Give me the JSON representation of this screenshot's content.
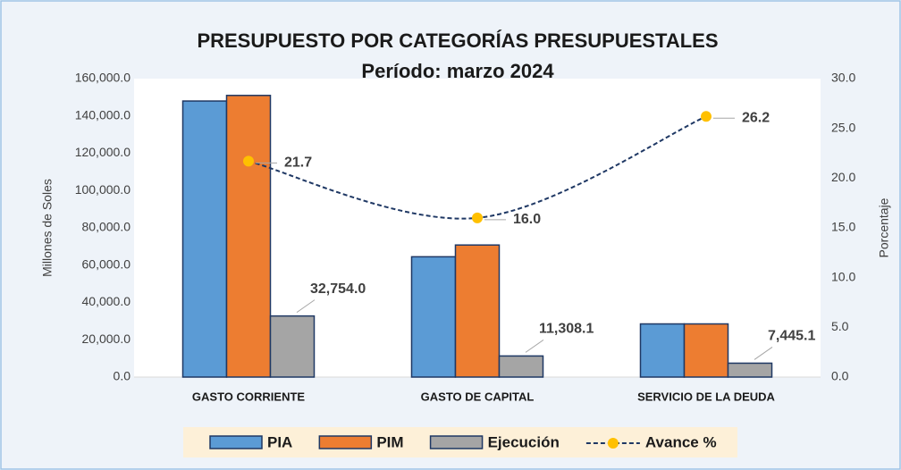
{
  "chart_data": {
    "type": "bar",
    "title": "PRESUPUESTO  POR CATEGORÍAS PRESUPUESTALES",
    "subtitle": "Período: marzo 2024",
    "y_label": "Millones de Soles",
    "y2_label": "Porcentaje",
    "categories": [
      "GASTO CORRIENTE",
      "GASTO DE CAPITAL",
      "SERVICIO DE LA DEUDA"
    ],
    "series": [
      {
        "name": "PIA",
        "type": "bar",
        "color": "#5b9bd5",
        "values": [
          148000,
          64500,
          28500
        ]
      },
      {
        "name": "PIM",
        "type": "bar",
        "color": "#ed7d31",
        "values": [
          151000,
          70800,
          28500
        ]
      },
      {
        "name": "Ejecución",
        "type": "bar",
        "color": "#a5a5a5",
        "values": [
          32754.0,
          11308.1,
          7445.1
        ],
        "value_labels": [
          "32,754.0",
          "11,308.1",
          "7,445.1"
        ]
      },
      {
        "name": "Avance %",
        "type": "line",
        "axis": "y2",
        "color": "#1f3864",
        "marker_color": "#ffc000",
        "values": [
          21.7,
          16.0,
          26.2
        ],
        "value_labels": [
          "21.7",
          "16.0",
          "26.2"
        ]
      }
    ],
    "ylim": [
      0,
      160000
    ],
    "yticks": [
      {
        "value": 0,
        "label": "0.0"
      },
      {
        "value": 20000,
        "label": "20,000.0"
      },
      {
        "value": 40000,
        "label": "40,000.0"
      },
      {
        "value": 60000,
        "label": "60,000.0"
      },
      {
        "value": 80000,
        "label": "80,000.0"
      },
      {
        "value": 100000,
        "label": "100,000.0"
      },
      {
        "value": 120000,
        "label": "120,000.0"
      },
      {
        "value": 140000,
        "label": "140,000.0"
      },
      {
        "value": 160000,
        "label": "160,000.0"
      }
    ],
    "y2lim": [
      0,
      30
    ],
    "y2ticks": [
      {
        "value": 0,
        "label": "0.0"
      },
      {
        "value": 5,
        "label": "5.0"
      },
      {
        "value": 10,
        "label": "10.0"
      },
      {
        "value": 15,
        "label": "15.0"
      },
      {
        "value": 20,
        "label": "20.0"
      },
      {
        "value": 25,
        "label": "25.0"
      },
      {
        "value": 30,
        "label": "30.0"
      }
    ],
    "legend": "bottom"
  }
}
